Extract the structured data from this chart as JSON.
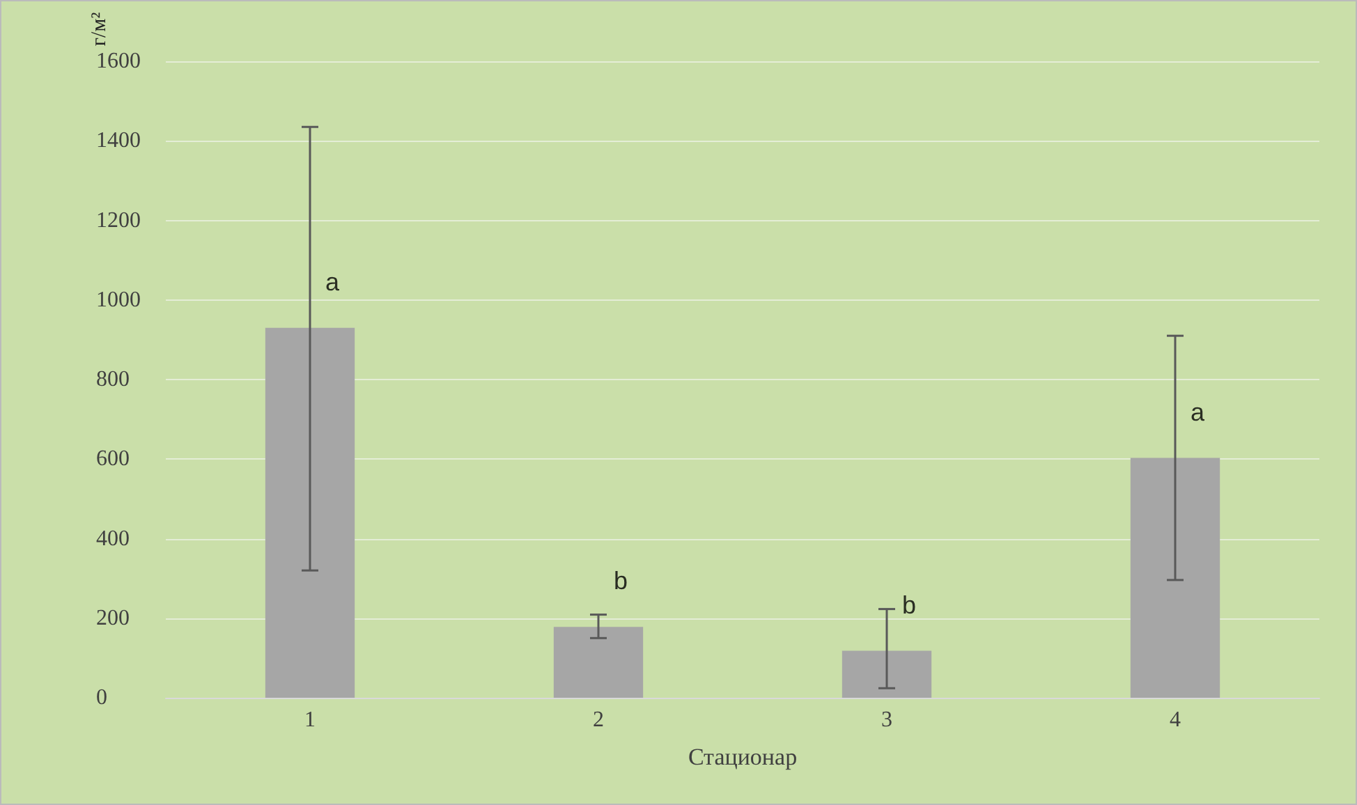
{
  "chart_data": {
    "type": "bar",
    "xlabel": "Стационар",
    "ylabel": "г/м²",
    "categories": [
      "1",
      "2",
      "3",
      "4"
    ],
    "values": [
      930,
      178,
      118,
      603
    ],
    "errors": [
      [
        320,
        1435
      ],
      [
        150,
        209
      ],
      [
        24,
        223
      ],
      [
        296,
        910
      ]
    ],
    "color": "#a6a6a6",
    "ylim": [
      0,
      1600
    ],
    "yticks": [
      0,
      200,
      400,
      600,
      800,
      1000,
      1200,
      1400,
      1600
    ],
    "grid": "y",
    "annotations": [
      "a",
      "b",
      "b",
      "a"
    ]
  }
}
